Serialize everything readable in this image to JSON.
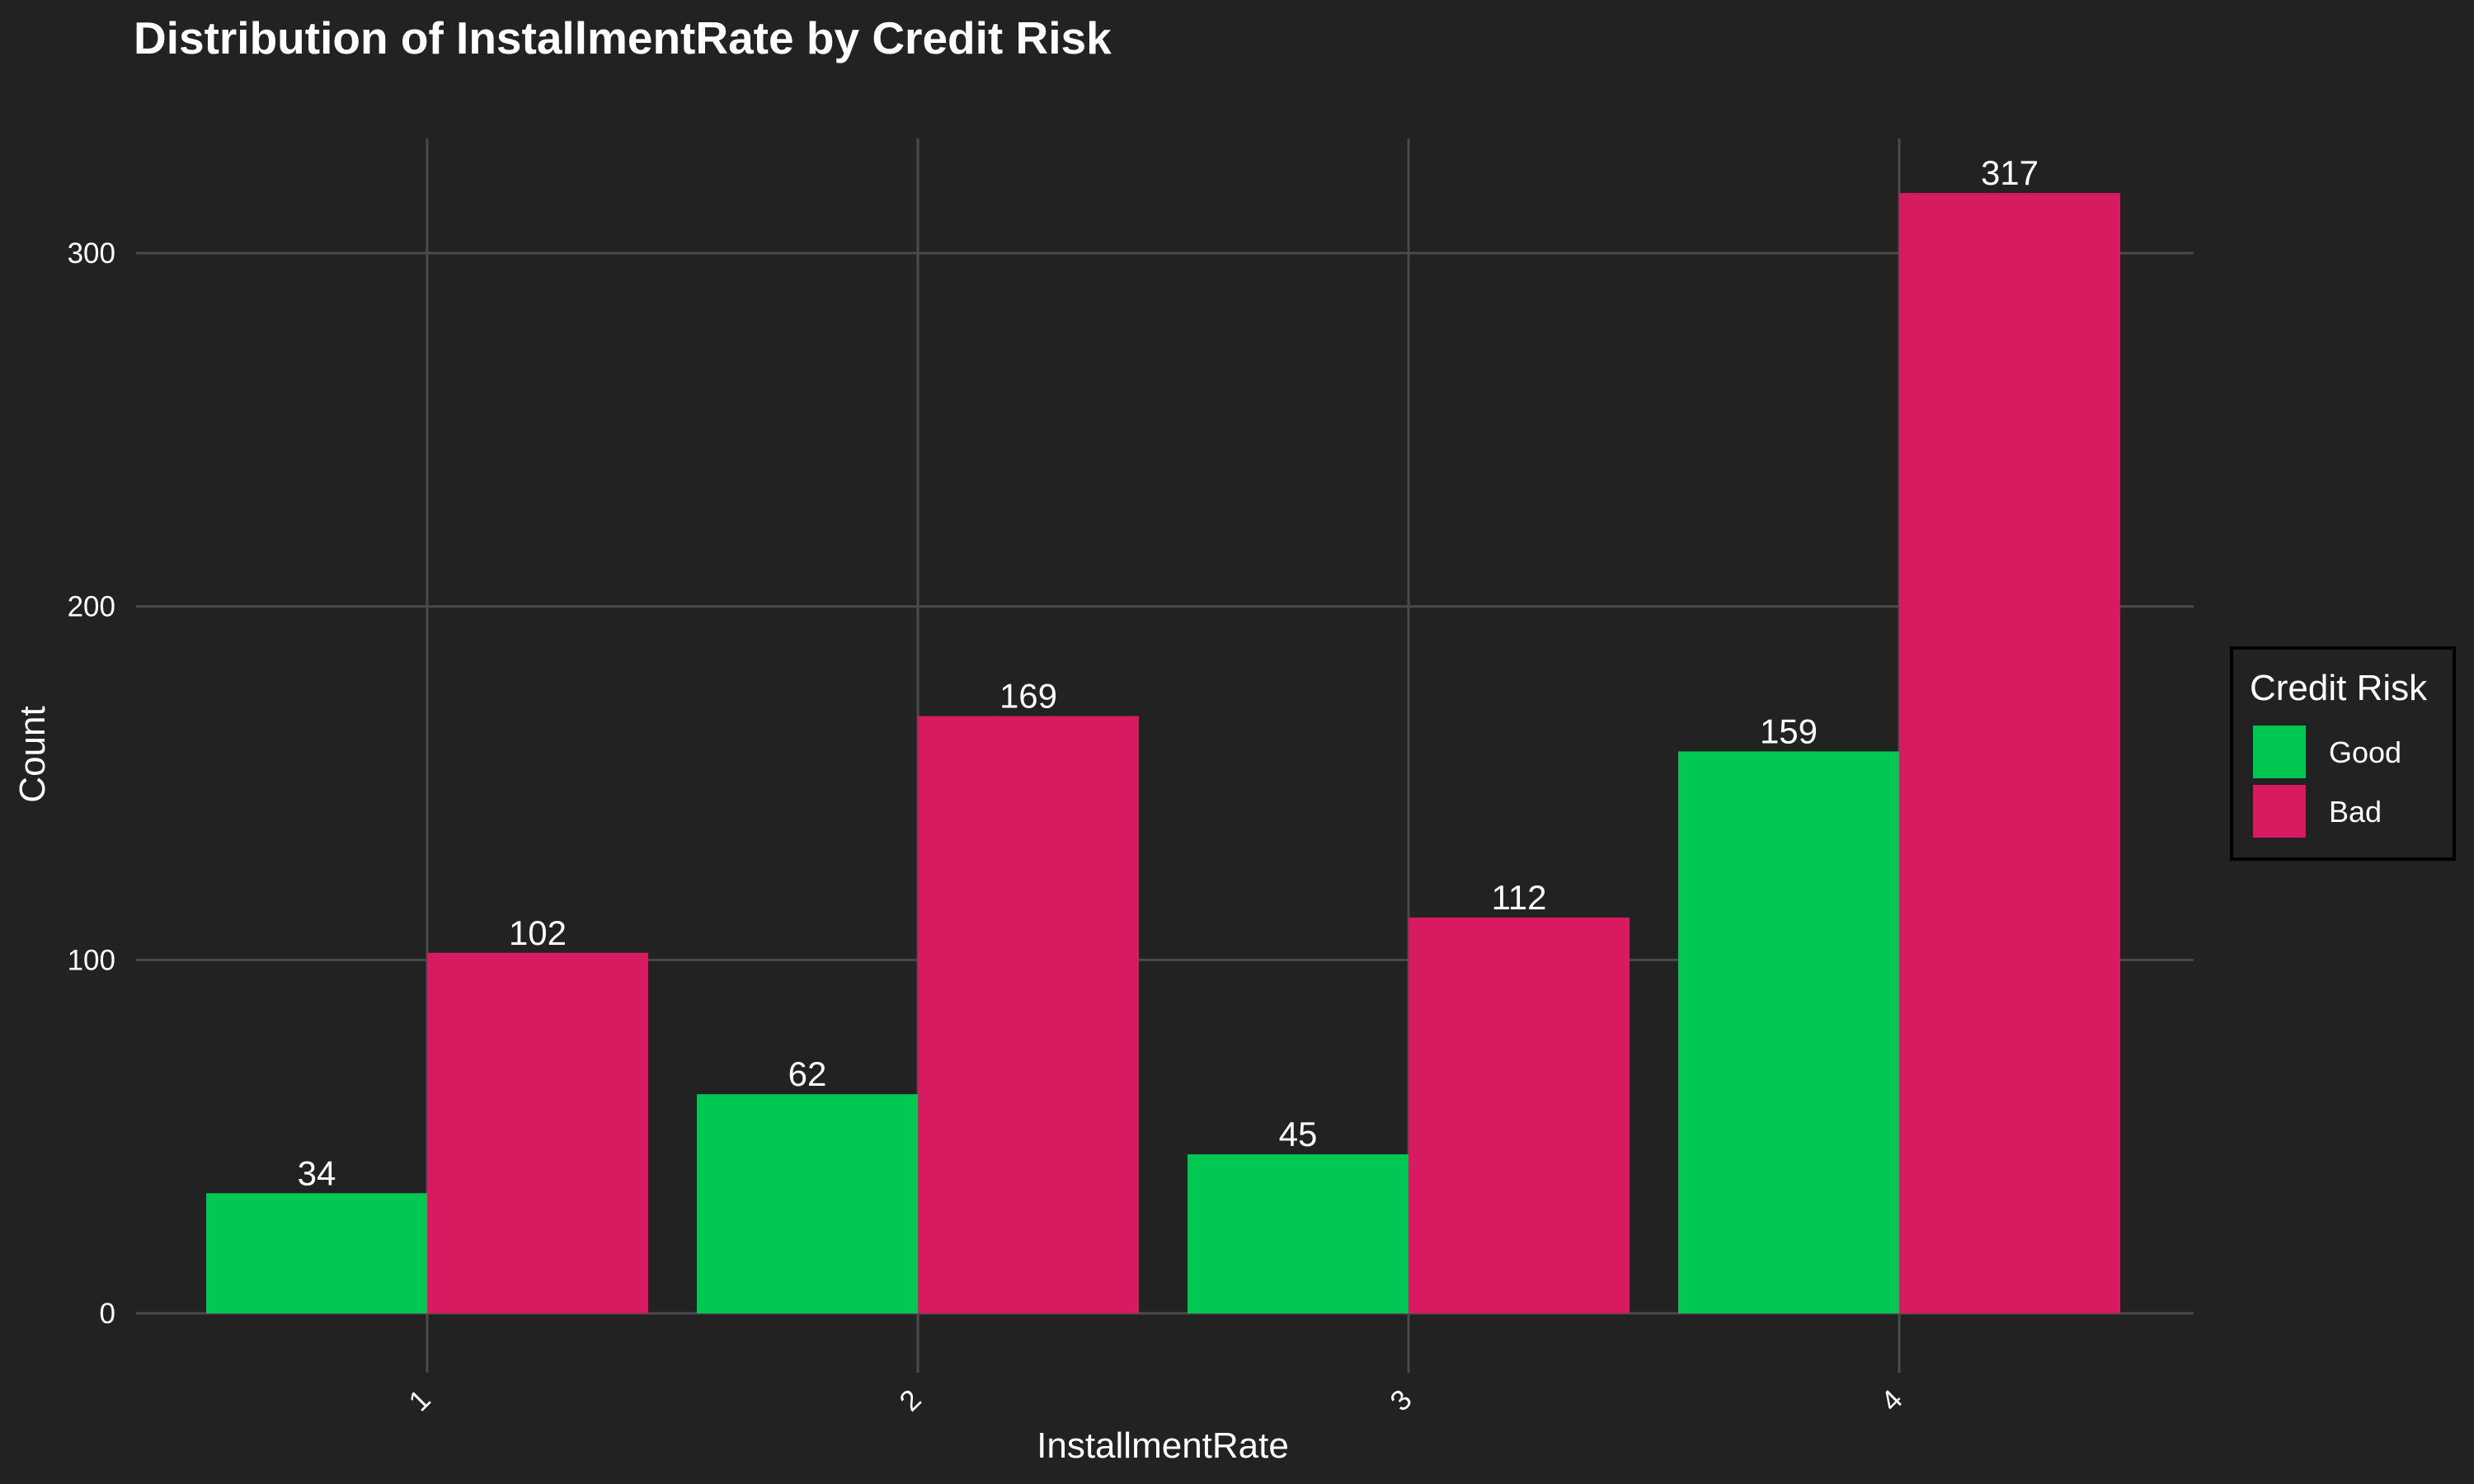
{
  "chart_data": {
    "type": "bar",
    "title": "Distribution of InstallmentRate by Credit Risk",
    "xlabel": "InstallmentRate",
    "ylabel": "Count",
    "categories": [
      "1",
      "2",
      "3",
      "4"
    ],
    "series": [
      {
        "name": "Good",
        "color": "#00c853",
        "values": [
          34,
          62,
          45,
          159
        ]
      },
      {
        "name": "Bad",
        "color": "#d81b60",
        "values": [
          102,
          169,
          112,
          317
        ]
      }
    ],
    "ylim": [
      0,
      333
    ],
    "yticks": [
      0,
      100,
      200,
      300
    ],
    "grid": true,
    "legend": {
      "title": "Credit Risk",
      "position": "right"
    },
    "background": "#222222"
  }
}
